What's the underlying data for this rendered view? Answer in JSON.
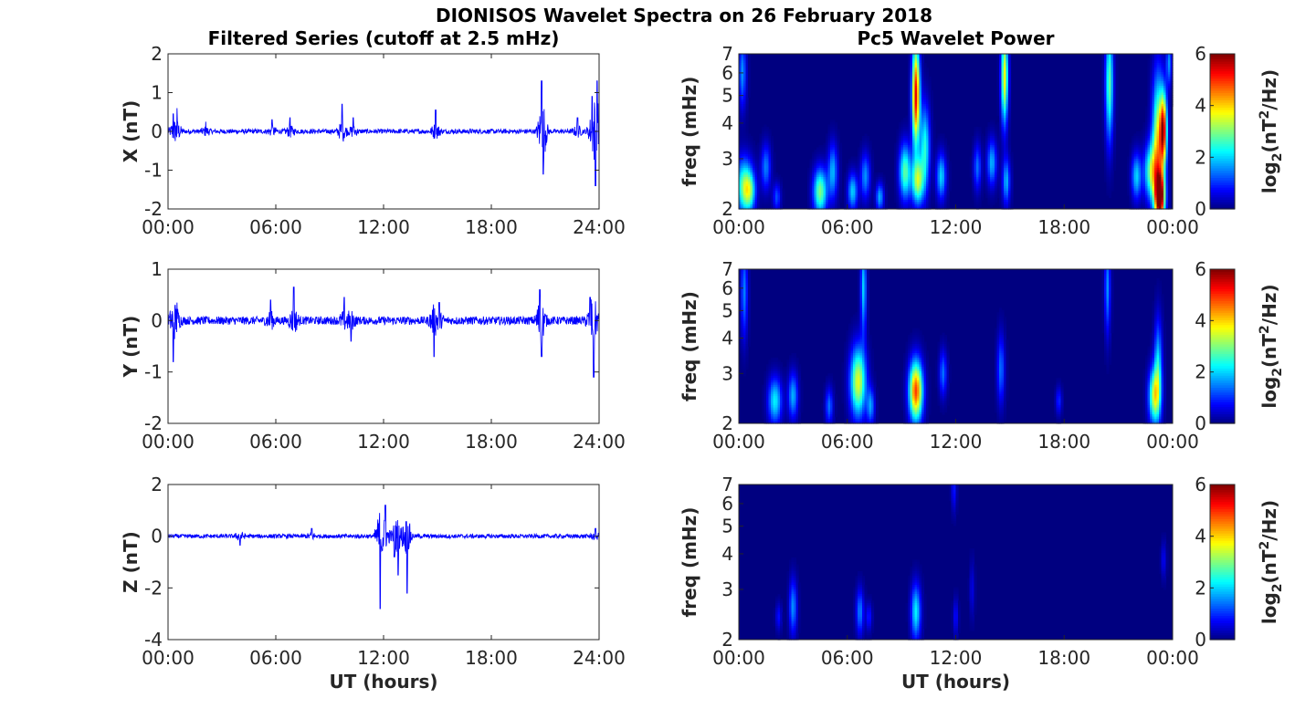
{
  "figure": {
    "title": "DIONISOS Wavelet Spectra on 26 February 2018"
  },
  "chart_data": [
    {
      "type": "line",
      "title": "Filtered Series (cutoff at 2.5 mHz)",
      "xlabel": "",
      "ylabel": "X (nT)",
      "xlim": [
        0,
        24
      ],
      "ylim": [
        -2,
        2
      ],
      "xticks": [
        "00:00",
        "06:00",
        "12:00",
        "18:00",
        "24:00"
      ],
      "yticks": [
        "-2",
        "-1",
        "0",
        "1",
        "2"
      ],
      "line_color": "#0000ff",
      "grid": false,
      "series": [
        {
          "baseline_amplitude": 0.06,
          "events": [
            {
              "t": 0.3,
              "amp": 0.45
            },
            {
              "t": 0.5,
              "amp": 0.6
            },
            {
              "t": 2.1,
              "amp": 0.25
            },
            {
              "t": 5.8,
              "amp": 0.3
            },
            {
              "t": 6.8,
              "amp": 0.35
            },
            {
              "t": 9.7,
              "amp": 0.7
            },
            {
              "t": 10.3,
              "amp": 0.35
            },
            {
              "t": 14.9,
              "amp": 0.55
            },
            {
              "t": 20.8,
              "amp": 1.3
            },
            {
              "t": 20.9,
              "amp": -1.1
            },
            {
              "t": 22.8,
              "amp": 0.35
            },
            {
              "t": 23.6,
              "amp": 0.9
            },
            {
              "t": 23.8,
              "amp": -1.4
            },
            {
              "t": 23.9,
              "amp": 1.3
            }
          ]
        }
      ]
    },
    {
      "type": "line",
      "title": "",
      "xlabel": "",
      "ylabel": "Y (nT)",
      "xlim": [
        0,
        24
      ],
      "ylim": [
        -2,
        1
      ],
      "xticks": [
        "00:00",
        "06:00",
        "12:00",
        "18:00",
        "24:00"
      ],
      "yticks": [
        "-2",
        "-1",
        "0",
        "1"
      ],
      "line_color": "#0000ff",
      "grid": false,
      "series": [
        {
          "baseline_amplitude": 0.08,
          "events": [
            {
              "t": 0.3,
              "amp": -0.8
            },
            {
              "t": 0.5,
              "amp": 0.35
            },
            {
              "t": 5.7,
              "amp": 0.4
            },
            {
              "t": 7.0,
              "amp": 0.65
            },
            {
              "t": 9.8,
              "amp": 0.45
            },
            {
              "t": 10.2,
              "amp": -0.4
            },
            {
              "t": 14.8,
              "amp": -0.7
            },
            {
              "t": 15.1,
              "amp": 0.35
            },
            {
              "t": 20.7,
              "amp": 0.6
            },
            {
              "t": 20.8,
              "amp": -0.7
            },
            {
              "t": 23.5,
              "amp": 0.45
            },
            {
              "t": 23.7,
              "amp": -1.1
            }
          ]
        }
      ]
    },
    {
      "type": "line",
      "title": "",
      "xlabel": "UT (hours)",
      "ylabel": "Z (nT)",
      "xlim": [
        0,
        24
      ],
      "ylim": [
        -4,
        2
      ],
      "xticks": [
        "00:00",
        "06:00",
        "12:00",
        "18:00",
        "24:00"
      ],
      "yticks": [
        "-4",
        "-2",
        "0",
        "2"
      ],
      "line_color": "#0000ff",
      "grid": false,
      "series": [
        {
          "baseline_amplitude": 0.08,
          "events": [
            {
              "t": 4.0,
              "amp": -0.35
            },
            {
              "t": 8.0,
              "amp": 0.3
            },
            {
              "t": 11.8,
              "amp": -2.8
            },
            {
              "t": 12.1,
              "amp": 1.2
            },
            {
              "t": 12.6,
              "amp": -0.8
            },
            {
              "t": 12.8,
              "amp": -1.5
            },
            {
              "t": 13.3,
              "amp": -2.2
            },
            {
              "t": 23.8,
              "amp": 0.3
            }
          ]
        }
      ]
    },
    {
      "type": "heatmap",
      "title": "Pc5 Wavelet Power",
      "xlabel": "",
      "ylabel": "freq (mHz)",
      "xlim": [
        0,
        24
      ],
      "ylim": [
        2,
        7
      ],
      "y_scale": "log",
      "xticks": [
        "00:00",
        "06:00",
        "12:00",
        "18:00",
        "00:00"
      ],
      "yticks": [
        "2",
        "3",
        "4",
        "5",
        "6",
        "7"
      ],
      "colorbar": {
        "label_main": "log",
        "label_sub": "2",
        "label_mid": "(nT",
        "label_sup": "2",
        "label_end": "/Hz)",
        "range": [
          0,
          6
        ],
        "ticks": [
          "0",
          "2",
          "4",
          "6"
        ],
        "colormap": "jet"
      },
      "blobs": [
        {
          "t": 0.2,
          "f": 6.0,
          "ws": 0.08,
          "fs": 0.15,
          "p": 1.6
        },
        {
          "t": 0.3,
          "f": 2.4,
          "ws": 0.18,
          "fs": 0.12,
          "p": 2.8
        },
        {
          "t": 0.6,
          "f": 2.3,
          "ws": 0.12,
          "fs": 0.08,
          "p": 1.8
        },
        {
          "t": 1.5,
          "f": 2.8,
          "ws": 0.1,
          "fs": 0.1,
          "p": 1.5
        },
        {
          "t": 2.1,
          "f": 2.2,
          "ws": 0.08,
          "fs": 0.06,
          "p": 1.2
        },
        {
          "t": 4.5,
          "f": 2.3,
          "ws": 0.14,
          "fs": 0.1,
          "p": 3.0
        },
        {
          "t": 5.2,
          "f": 2.7,
          "ws": 0.1,
          "fs": 0.12,
          "p": 1.8
        },
        {
          "t": 6.3,
          "f": 2.3,
          "ws": 0.1,
          "fs": 0.08,
          "p": 2.0
        },
        {
          "t": 7.0,
          "f": 2.6,
          "ws": 0.1,
          "fs": 0.1,
          "p": 1.6
        },
        {
          "t": 7.8,
          "f": 2.2,
          "ws": 0.08,
          "fs": 0.06,
          "p": 1.8
        },
        {
          "t": 9.2,
          "f": 2.7,
          "ws": 0.12,
          "fs": 0.12,
          "p": 2.8
        },
        {
          "t": 9.8,
          "f": 5.0,
          "ws": 0.08,
          "fs": 0.22,
          "p": 5.4
        },
        {
          "t": 9.9,
          "f": 2.5,
          "ws": 0.12,
          "fs": 0.1,
          "p": 3.2
        },
        {
          "t": 10.3,
          "f": 3.3,
          "ws": 0.1,
          "fs": 0.18,
          "p": 2.4
        },
        {
          "t": 11.2,
          "f": 2.6,
          "ws": 0.1,
          "fs": 0.1,
          "p": 2.0
        },
        {
          "t": 13.2,
          "f": 2.8,
          "ws": 0.08,
          "fs": 0.1,
          "p": 1.4
        },
        {
          "t": 14.0,
          "f": 2.9,
          "ws": 0.1,
          "fs": 0.1,
          "p": 1.8
        },
        {
          "t": 14.7,
          "f": 5.8,
          "ws": 0.07,
          "fs": 0.2,
          "p": 3.8
        },
        {
          "t": 14.8,
          "f": 2.5,
          "ws": 0.08,
          "fs": 0.1,
          "p": 1.8
        },
        {
          "t": 20.5,
          "f": 5.5,
          "ws": 0.08,
          "fs": 0.25,
          "p": 2.8
        },
        {
          "t": 22.0,
          "f": 2.6,
          "ws": 0.1,
          "fs": 0.1,
          "p": 2.0
        },
        {
          "t": 22.8,
          "f": 2.7,
          "ws": 0.14,
          "fs": 0.12,
          "p": 2.8
        },
        {
          "t": 23.2,
          "f": 3.3,
          "ws": 0.12,
          "fs": 0.3,
          "p": 3.8
        },
        {
          "t": 23.3,
          "f": 2.2,
          "ws": 0.1,
          "fs": 0.1,
          "p": 5.6
        },
        {
          "t": 23.5,
          "f": 3.8,
          "ws": 0.07,
          "fs": 0.15,
          "p": 4.6
        },
        {
          "t": 23.8,
          "f": 6.5,
          "ws": 0.06,
          "fs": 0.1,
          "p": 1.6
        }
      ]
    },
    {
      "type": "heatmap",
      "title": "",
      "xlabel": "",
      "ylabel": "freq (mHz)",
      "xlim": [
        0,
        24
      ],
      "ylim": [
        2,
        7
      ],
      "y_scale": "log",
      "xticks": [
        "00:00",
        "06:00",
        "12:00",
        "18:00",
        "00:00"
      ],
      "yticks": [
        "2",
        "3",
        "4",
        "5",
        "6",
        "7"
      ],
      "colorbar": {
        "label_main": "log",
        "label_sub": "2",
        "label_mid": "(nT",
        "label_sup": "2",
        "label_end": "/Hz)",
        "range": [
          0,
          6
        ],
        "ticks": [
          "0",
          "2",
          "4",
          "6"
        ],
        "colormap": "jet"
      },
      "blobs": [
        {
          "t": 0.3,
          "f": 5.8,
          "ws": 0.07,
          "fs": 0.2,
          "p": 1.5
        },
        {
          "t": 2.0,
          "f": 2.4,
          "ws": 0.14,
          "fs": 0.1,
          "p": 2.2
        },
        {
          "t": 3.0,
          "f": 2.5,
          "ws": 0.1,
          "fs": 0.1,
          "p": 1.8
        },
        {
          "t": 5.0,
          "f": 2.3,
          "ws": 0.08,
          "fs": 0.08,
          "p": 1.4
        },
        {
          "t": 6.6,
          "f": 2.8,
          "ws": 0.16,
          "fs": 0.15,
          "p": 3.6
        },
        {
          "t": 6.9,
          "f": 6.0,
          "ws": 0.06,
          "fs": 0.2,
          "p": 2.0
        },
        {
          "t": 7.3,
          "f": 2.3,
          "ws": 0.08,
          "fs": 0.08,
          "p": 1.6
        },
        {
          "t": 9.8,
          "f": 2.6,
          "ws": 0.14,
          "fs": 0.13,
          "p": 4.9
        },
        {
          "t": 11.3,
          "f": 3.0,
          "ws": 0.08,
          "fs": 0.1,
          "p": 1.4
        },
        {
          "t": 14.5,
          "f": 3.1,
          "ws": 0.08,
          "fs": 0.15,
          "p": 1.4
        },
        {
          "t": 17.7,
          "f": 2.4,
          "ws": 0.06,
          "fs": 0.06,
          "p": 1.0
        },
        {
          "t": 20.4,
          "f": 6.0,
          "ws": 0.06,
          "fs": 0.2,
          "p": 1.6
        },
        {
          "t": 23.0,
          "f": 2.5,
          "ws": 0.12,
          "fs": 0.12,
          "p": 3.4
        },
        {
          "t": 23.2,
          "f": 3.2,
          "ws": 0.08,
          "fs": 0.2,
          "p": 2.0
        }
      ]
    },
    {
      "type": "heatmap",
      "title": "",
      "xlabel": "UT (hours)",
      "ylabel": "freq (mHz)",
      "xlim": [
        0,
        24
      ],
      "ylim": [
        2,
        7
      ],
      "y_scale": "log",
      "xticks": [
        "00:00",
        "06:00",
        "12:00",
        "18:00",
        "00:00"
      ],
      "yticks": [
        "2",
        "3",
        "4",
        "5",
        "6",
        "7"
      ],
      "colorbar": {
        "label_main": "log",
        "label_sub": "2",
        "label_mid": "(nT",
        "label_sup": "2",
        "label_end": "/Hz)",
        "range": [
          0,
          6
        ],
        "ticks": [
          "0",
          "2",
          "4",
          "6"
        ],
        "colormap": "jet"
      },
      "blobs": [
        {
          "t": 2.2,
          "f": 2.4,
          "ws": 0.06,
          "fs": 0.06,
          "p": 0.8
        },
        {
          "t": 3.0,
          "f": 2.6,
          "ws": 0.08,
          "fs": 0.12,
          "p": 1.6
        },
        {
          "t": 6.7,
          "f": 2.5,
          "ws": 0.08,
          "fs": 0.1,
          "p": 1.5
        },
        {
          "t": 7.2,
          "f": 2.4,
          "ws": 0.06,
          "fs": 0.06,
          "p": 0.9
        },
        {
          "t": 9.8,
          "f": 2.5,
          "ws": 0.1,
          "fs": 0.12,
          "p": 2.2
        },
        {
          "t": 11.9,
          "f": 6.8,
          "ws": 0.05,
          "fs": 0.1,
          "p": 0.9
        },
        {
          "t": 12.0,
          "f": 2.4,
          "ws": 0.05,
          "fs": 0.08,
          "p": 0.8
        },
        {
          "t": 12.9,
          "f": 3.0,
          "ws": 0.05,
          "fs": 0.12,
          "p": 0.6
        },
        {
          "t": 23.5,
          "f": 3.8,
          "ws": 0.05,
          "fs": 0.08,
          "p": 0.7
        }
      ]
    }
  ]
}
